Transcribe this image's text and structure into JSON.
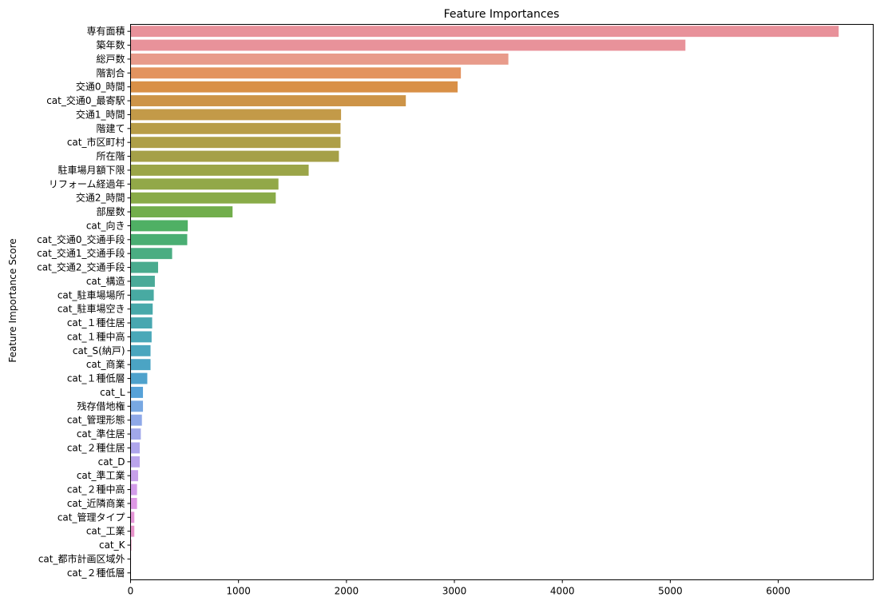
{
  "chart_data": {
    "type": "bar",
    "orientation": "horizontal",
    "title": "Feature Importances",
    "xlabel": "",
    "ylabel": "Feature Importance Score",
    "xlim": [
      0,
      6880
    ],
    "xticks": [
      0,
      1000,
      2000,
      3000,
      4000,
      5000,
      6000
    ],
    "grid": false,
    "legend": "none",
    "categories": [
      "専有面積",
      "築年数",
      "総戸数",
      "階割合",
      "交通0_時間",
      "cat_交通0_最寄駅",
      "交通1_時間",
      "階建て",
      "cat_市区町村",
      "所在階",
      "駐車場月額下限",
      "リフォーム経過年",
      "交通2_時間",
      "部屋数",
      "cat_向き",
      "cat_交通0_交通手段",
      "cat_交通1_交通手段",
      "cat_交通2_交通手段",
      "cat_構造",
      "cat_駐車場場所",
      "cat_駐車場空き",
      "cat_１種住居",
      "cat_１種中高",
      "cat_S(納戸)",
      "cat_商業",
      "cat_１種低層",
      "cat_L",
      "残存借地権",
      "cat_管理形態",
      "cat_準住居",
      "cat_２種住居",
      "cat_D",
      "cat_準工業",
      "cat_２種中高",
      "cat_近隣商業",
      "cat_管理タイプ",
      "cat_工業",
      "cat_K",
      "cat_都市計画区域外",
      "cat_２種低層"
    ],
    "values": [
      6560,
      5140,
      3500,
      3060,
      3030,
      2550,
      1950,
      1945,
      1945,
      1930,
      1650,
      1370,
      1345,
      945,
      530,
      525,
      385,
      255,
      225,
      215,
      205,
      200,
      195,
      185,
      185,
      155,
      115,
      115,
      105,
      95,
      85,
      85,
      70,
      60,
      60,
      35,
      35,
      8,
      4,
      2
    ],
    "colors": [
      "#e8919a",
      "#e8929a",
      "#e89b8b",
      "#e3935f",
      "#d99047",
      "#cd9448",
      "#c39a48",
      "#b89d48",
      "#ae9f48",
      "#a5a048",
      "#9ba548",
      "#92a848",
      "#89ab48",
      "#72ae4c",
      "#4fb064",
      "#4aae73",
      "#4aad82",
      "#4aab8e",
      "#4aaa98",
      "#48aaa2",
      "#48a9aa",
      "#48a7b0",
      "#4aa8b8",
      "#4aa6be",
      "#4ba4c4",
      "#4fa2cc",
      "#56a2d8",
      "#78a8e2",
      "#8ea8e8",
      "#a1a8ea",
      "#afa6ec",
      "#baa4ec",
      "#c7a0ea",
      "#d39cea",
      "#de98e5",
      "#e596d8",
      "#e894cb",
      "#eb92bb",
      "#eb91ad",
      "#eb91a3"
    ]
  }
}
